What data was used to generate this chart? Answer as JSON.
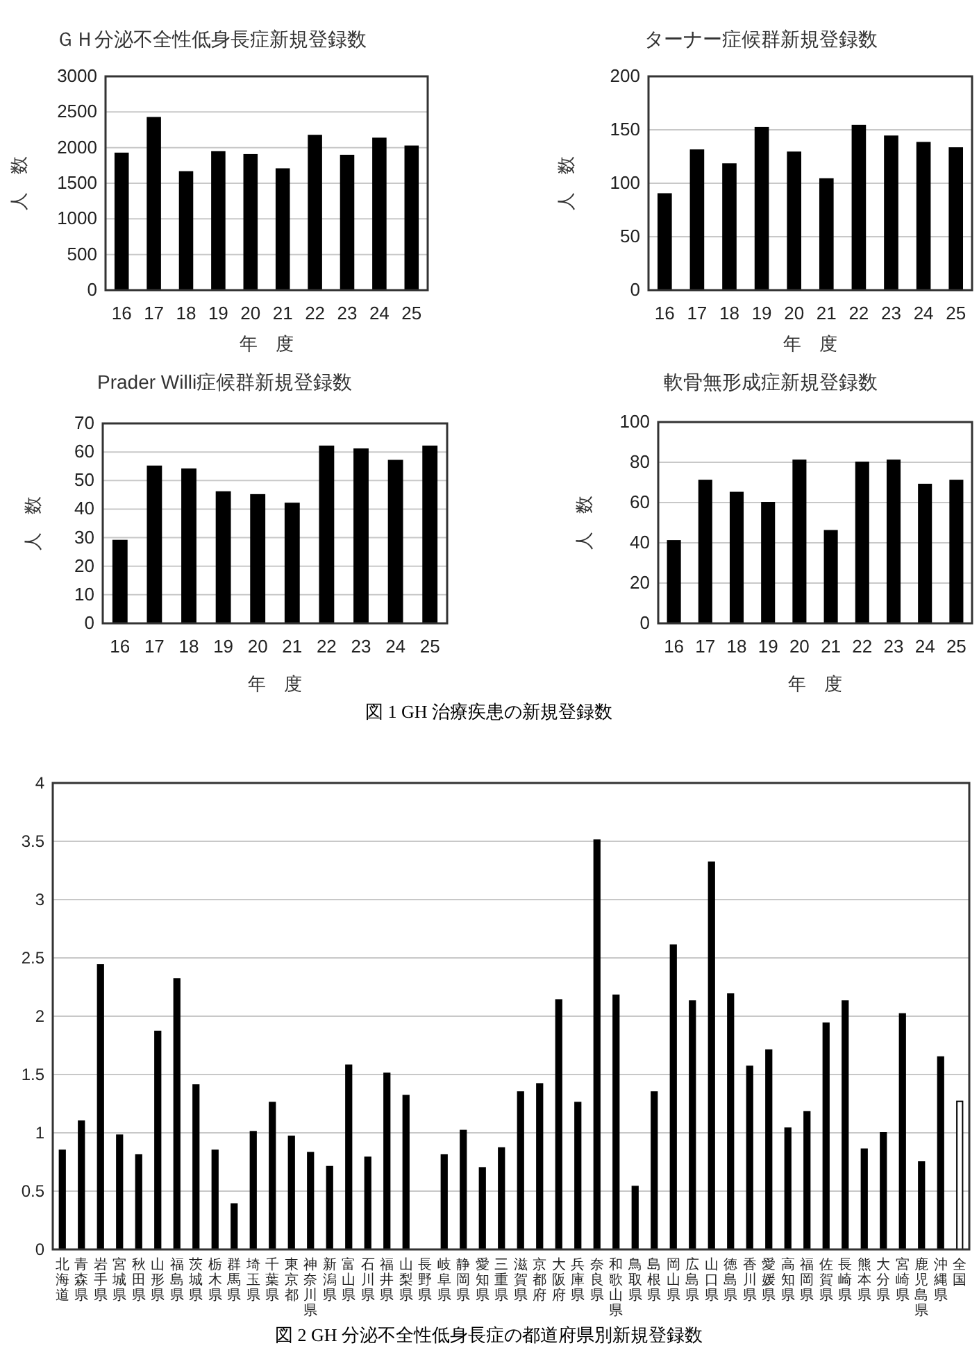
{
  "chart_data": [
    {
      "type": "bar",
      "title": "ＧＨ分泌不全性低身長症新規登録数",
      "xlabel": "年　度",
      "ylabel": "人　数",
      "categories": [
        "16",
        "17",
        "18",
        "19",
        "20",
        "21",
        "22",
        "23",
        "24",
        "25"
      ],
      "values": [
        1920,
        2420,
        1660,
        1940,
        1900,
        1700,
        2170,
        1890,
        2130,
        2020
      ],
      "color": "#000000",
      "ylim": [
        0,
        3000
      ],
      "yticks": [
        0,
        500,
        1000,
        1500,
        2000,
        2500,
        3000
      ],
      "grid": "y"
    },
    {
      "type": "bar",
      "title": "ターナー症候群新規登録数",
      "xlabel": "年　度",
      "ylabel": "人　数",
      "categories": [
        "16",
        "17",
        "18",
        "19",
        "20",
        "21",
        "22",
        "23",
        "24",
        "25"
      ],
      "values": [
        90,
        131,
        118,
        152,
        129,
        104,
        154,
        144,
        138,
        133
      ],
      "color": "#000000",
      "ylim": [
        0,
        200
      ],
      "yticks": [
        0,
        50,
        100,
        150,
        200
      ],
      "grid": "y"
    },
    {
      "type": "bar",
      "title": "Prader Willi症候群新規登録数",
      "xlabel": "年　度",
      "ylabel": "人　数",
      "categories": [
        "16",
        "17",
        "18",
        "19",
        "20",
        "21",
        "22",
        "23",
        "24",
        "25"
      ],
      "values": [
        29,
        55,
        54,
        46,
        45,
        42,
        62,
        61,
        57,
        62
      ],
      "color": "#000000",
      "ylim": [
        0,
        70
      ],
      "yticks": [
        0,
        10,
        20,
        30,
        40,
        50,
        60,
        70
      ],
      "grid": "y"
    },
    {
      "type": "bar",
      "title": "軟骨無形成症新規登録数",
      "xlabel": "年　度",
      "ylabel": "人　数",
      "categories": [
        "16",
        "17",
        "18",
        "19",
        "20",
        "21",
        "22",
        "23",
        "24",
        "25"
      ],
      "values": [
        41,
        71,
        65,
        60,
        81,
        46,
        80,
        81,
        69,
        71
      ],
      "color": "#000000",
      "ylim": [
        0,
        100
      ],
      "yticks": [
        0,
        20,
        40,
        60,
        80,
        100
      ],
      "grid": "y",
      "annotations": [
        "図 1 GH 治療疾患の新規登録数"
      ]
    },
    {
      "type": "bar",
      "categories": [
        "北海道",
        "青森県",
        "岩手県",
        "宮城県",
        "秋田県",
        "山形県",
        "福島県",
        "茨城県",
        "栃木県",
        "群馬県",
        "埼玉県",
        "千葉県",
        "東京都",
        "神奈川県",
        "新潟県",
        "富山県",
        "石川県",
        "福井県",
        "山梨県",
        "長野県",
        "岐阜県",
        "静岡県",
        "愛知県",
        "三重県",
        "滋賀県",
        "京都府",
        "大阪府",
        "兵庫県",
        "奈良県",
        "和歌山県",
        "鳥取県",
        "島根県",
        "岡山県",
        "広島県",
        "山口県",
        "徳島県",
        "香川県",
        "愛媛県",
        "高知県",
        "福岡県",
        "佐賀県",
        "長崎県",
        "熊本県",
        "大分県",
        "宮崎県",
        "鹿児島県",
        "沖縄県",
        "全国"
      ],
      "values": [
        0.85,
        1.1,
        2.44,
        0.98,
        0.81,
        1.87,
        2.32,
        1.41,
        0.85,
        0.39,
        1.01,
        1.26,
        0.97,
        0.83,
        0.71,
        1.58,
        0.79,
        1.51,
        1.32,
        0,
        0.81,
        1.02,
        0.7,
        0.87,
        1.35,
        1.42,
        2.14,
        1.26,
        3.51,
        2.18,
        0.54,
        1.35,
        2.61,
        2.13,
        3.32,
        2.19,
        1.57,
        1.71,
        1.04,
        1.18,
        1.94,
        2.13,
        0.86,
        1.0,
        2.02,
        0.75,
        1.65,
        1.27
      ],
      "colors": [
        "#000000",
        "#000000",
        "#000000",
        "#000000",
        "#000000",
        "#000000",
        "#000000",
        "#000000",
        "#000000",
        "#000000",
        "#000000",
        "#000000",
        "#000000",
        "#000000",
        "#000000",
        "#000000",
        "#000000",
        "#000000",
        "#000000",
        "#000000",
        "#000000",
        "#000000",
        "#000000",
        "#000000",
        "#000000",
        "#000000",
        "#000000",
        "#000000",
        "#000000",
        "#000000",
        "#000000",
        "#000000",
        "#000000",
        "#000000",
        "#000000",
        "#000000",
        "#000000",
        "#000000",
        "#000000",
        "#000000",
        "#000000",
        "#000000",
        "#000000",
        "#000000",
        "#000000",
        "#000000",
        "#000000",
        "#ffffff"
      ],
      "ylim": [
        0,
        4
      ],
      "yticks": [
        0,
        0.5,
        1,
        1.5,
        2,
        2.5,
        3,
        3.5,
        4
      ],
      "grid": "y",
      "annotations": [
        "図 2 GH 分泌不全性低身長症の都道府県別新規登録数"
      ]
    }
  ]
}
